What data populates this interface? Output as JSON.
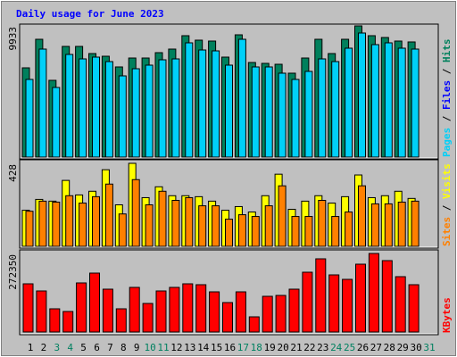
{
  "title": "Daily usage for June 2023",
  "separator": " / ",
  "chart_data": [
    {
      "type": "bar",
      "ylim": [
        0,
        9933
      ],
      "yticks": [
        9933
      ],
      "files_label": "Files",
      "files_color": "#0000ff",
      "series": [
        {
          "name": "Hits",
          "color": "#00805c",
          "values": [
            6757,
            8919,
            5811,
            8379,
            8379,
            7838,
            7635,
            6825,
            7500,
            7500,
            7906,
            8176,
            9190,
            8852,
            8784,
            7568,
            9257,
            7162,
            7095,
            7027,
            6352,
            7500,
            8919,
            7838,
            8919,
            9933,
            9190,
            9054,
            8784,
            8717,
            null
          ]
        },
        {
          "name": "Pages",
          "color": "#00d0f8",
          "values": [
            5879,
            8176,
            5270,
            7771,
            7433,
            7568,
            7230,
            6149,
            6689,
            6960,
            7365,
            7433,
            8649,
            8108,
            8041,
            6960,
            8919,
            6825,
            6825,
            6352,
            5879,
            6487,
            7433,
            7230,
            8244,
            9392,
            8514,
            8649,
            8244,
            8176,
            null
          ]
        }
      ]
    },
    {
      "type": "bar",
      "ylim": [
        0,
        428
      ],
      "yticks": [
        428
      ],
      "series": [
        {
          "name": "Visits",
          "color": "#ffff00",
          "values": [
            186,
            242,
            233,
            340,
            265,
            284,
            395,
            214,
            428,
            251,
            307,
            261,
            261,
            256,
            233,
            186,
            205,
            177,
            261,
            372,
            191,
            233,
            261,
            223,
            256,
            368,
            251,
            261,
            284,
            247,
            null
          ]
        },
        {
          "name": "Sites",
          "color": "#ff8000",
          "values": [
            181,
            233,
            228,
            261,
            223,
            256,
            321,
            167,
            344,
            214,
            284,
            237,
            251,
            209,
            209,
            140,
            163,
            154,
            209,
            312,
            154,
            154,
            237,
            154,
            177,
            312,
            219,
            219,
            228,
            233,
            null
          ]
        }
      ]
    },
    {
      "type": "bar",
      "ylim": [
        0,
        272350
      ],
      "yticks": [
        272350
      ],
      "categories": [
        1,
        2,
        3,
        4,
        5,
        6,
        7,
        8,
        9,
        10,
        11,
        12,
        13,
        14,
        15,
        16,
        17,
        18,
        19,
        20,
        21,
        22,
        23,
        24,
        25,
        26,
        27,
        28,
        29,
        30,
        31
      ],
      "category_colors": [
        "#000000",
        "#000000",
        "#008060",
        "#008060",
        "#000000",
        "#000000",
        "#000000",
        "#000000",
        "#000000",
        "#008060",
        "#008060",
        "#000000",
        "#000000",
        "#000000",
        "#000000",
        "#000000",
        "#008060",
        "#008060",
        "#000000",
        "#000000",
        "#000000",
        "#000000",
        "#000000",
        "#008060",
        "#008060",
        "#000000",
        "#000000",
        "#000000",
        "#000000",
        "#000000",
        "#008060"
      ],
      "series": [
        {
          "name": "KBytes",
          "color": "#ff0000",
          "values": [
            167125,
            142366,
            80467,
            71183,
            170220,
            204263,
            148555,
            80467,
            154745,
            99037,
            142366,
            154745,
            167125,
            164030,
            139271,
            102132,
            139271,
            52613,
            123796,
            126891,
            148555,
            207358,
            253782,
            198074,
            182599,
            235212,
            272350,
            247592,
            191884,
            164030,
            null
          ]
        }
      ]
    }
  ]
}
